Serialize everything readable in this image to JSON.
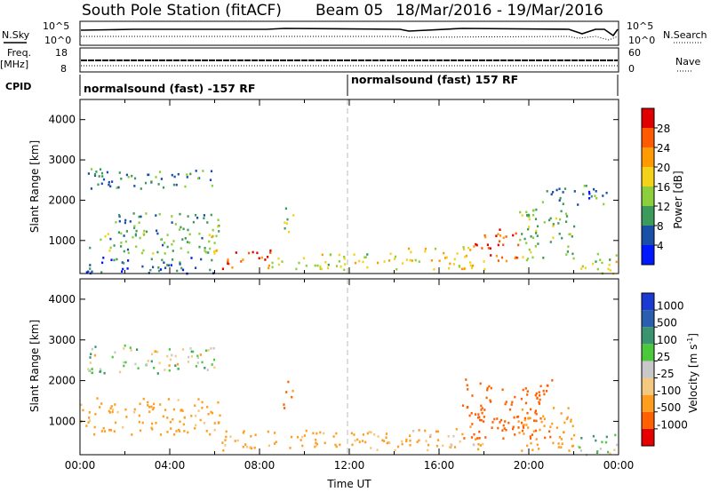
{
  "header": {
    "station": "South Pole Station (fitACF)",
    "beam": "Beam 05",
    "date_range": "18/Mar/2016 - 19/Mar/2016"
  },
  "status_panel": {
    "nsky_label": "N.Sky",
    "nsky_ticks": [
      "10^5",
      "10^0"
    ],
    "nsearch_label": "N.Search",
    "nsearch_ticks": [
      "10^5",
      "10^0"
    ],
    "freq_label": "Freq.",
    "freq_unit": "[MHz]",
    "freq_ticks": [
      "18",
      "8"
    ],
    "nave_label": "Nave",
    "nave_ticks": [
      "60",
      "0"
    ],
    "cpid_label": "CPID",
    "cpid_segments": [
      "normalsound (fast) -157 RF",
      "normalsound (fast) 157 RF"
    ]
  },
  "colors": {
    "power_scale": [
      "#0018ff",
      "#1a4fa8",
      "#3b9b5a",
      "#8ccf3c",
      "#f5d21a",
      "#ff9a00",
      "#ff5a00",
      "#e00000"
    ],
    "velocity_scale": [
      "#e60000",
      "#ff6000",
      "#ff9d1e",
      "#f5c880",
      "#c8c8c8",
      "#4cc83c",
      "#3a9470",
      "#2a5fb0",
      "#1a3ad2"
    ],
    "ground_scatter": "#a0a0a0"
  },
  "power_colorbar": {
    "label": "Power [dB]",
    "ticks": [
      "4",
      "8",
      "12",
      "16",
      "20",
      "24",
      "28"
    ]
  },
  "velocity_colorbar": {
    "label": "Velocity [m s",
    "label_sup": "-1",
    "label_end": "]",
    "ticks": [
      "1000",
      "500",
      "100",
      "25",
      "-25",
      "-100",
      "-500",
      "-1000"
    ]
  },
  "chart_data": [
    {
      "type": "heatmap",
      "title": "",
      "ylabel": "Slant Range [km]",
      "xlabel": "",
      "xlim": [
        "00:00",
        "00:00"
      ],
      "ylim": [
        180,
        4500
      ],
      "yticks": [
        "1000",
        "2000",
        "3000",
        "4000"
      ],
      "quantity": "Power [dB]",
      "blobs": [
        {
          "t0": 0.3,
          "t1": 6.2,
          "r0": 2300,
          "r1": 2800,
          "v": 9
        },
        {
          "t0": 1.5,
          "t1": 6.2,
          "r0": 1200,
          "r1": 1700,
          "v": 9
        },
        {
          "t0": 0.3,
          "t1": 6.2,
          "r0": 700,
          "r1": 1200,
          "v": 12
        },
        {
          "t0": 5.5,
          "t1": 6.2,
          "r0": 700,
          "r1": 1400,
          "v": 18
        },
        {
          "t0": 0.0,
          "t1": 6.2,
          "r0": 200,
          "r1": 600,
          "v": 6
        },
        {
          "t0": 6.3,
          "t1": 8.5,
          "r0": 300,
          "r1": 800,
          "v": 27
        },
        {
          "t0": 8.5,
          "t1": 14.5,
          "r0": 300,
          "r1": 700,
          "v": 16
        },
        {
          "t0": 9.0,
          "t1": 9.5,
          "r0": 1200,
          "r1": 2000,
          "v": 13
        },
        {
          "t0": 14.5,
          "t1": 18.0,
          "r0": 300,
          "r1": 900,
          "v": 19
        },
        {
          "t0": 17.5,
          "t1": 19.5,
          "r0": 500,
          "r1": 1300,
          "v": 26
        },
        {
          "t0": 19.5,
          "t1": 22.0,
          "r0": 500,
          "r1": 1800,
          "v": 13
        },
        {
          "t0": 20.5,
          "t1": 23.5,
          "r0": 1900,
          "r1": 2400,
          "v": 8
        },
        {
          "t0": 22.0,
          "t1": 24.0,
          "r0": 200,
          "r1": 700,
          "v": 16
        }
      ]
    },
    {
      "type": "heatmap",
      "title": "",
      "ylabel": "Slant Range [km]",
      "xlabel": "Time UT",
      "xlim": [
        "00:00",
        "00:00"
      ],
      "ylim": [
        180,
        4500
      ],
      "xticks": [
        "00:00",
        "04:00",
        "08:00",
        "12:00",
        "16:00",
        "20:00",
        "00:00"
      ],
      "yticks": [
        "1000",
        "2000",
        "3000",
        "4000"
      ],
      "quantity": "Velocity [m s-1]",
      "blobs": [
        {
          "t0": 0.3,
          "t1": 6.2,
          "r0": 2200,
          "r1": 2900,
          "v": 0
        },
        {
          "t0": 0.0,
          "t1": 6.2,
          "r0": 700,
          "r1": 1600,
          "v": -200
        },
        {
          "t0": 6.3,
          "t1": 14.5,
          "r0": 300,
          "r1": 800,
          "v": -150
        },
        {
          "t0": 9.0,
          "t1": 9.5,
          "r0": 1300,
          "r1": 2000,
          "v": -600
        },
        {
          "t0": 14.5,
          "t1": 18.0,
          "r0": 300,
          "r1": 900,
          "v": -120
        },
        {
          "t0": 17.0,
          "t1": 21.0,
          "r0": 600,
          "r1": 2100,
          "v": -800
        },
        {
          "t0": 19.5,
          "t1": 22.0,
          "r0": 300,
          "r1": 1400,
          "v": -300
        },
        {
          "t0": 22.0,
          "t1": 24.0,
          "r0": 200,
          "r1": 700,
          "v": 60
        }
      ]
    }
  ]
}
